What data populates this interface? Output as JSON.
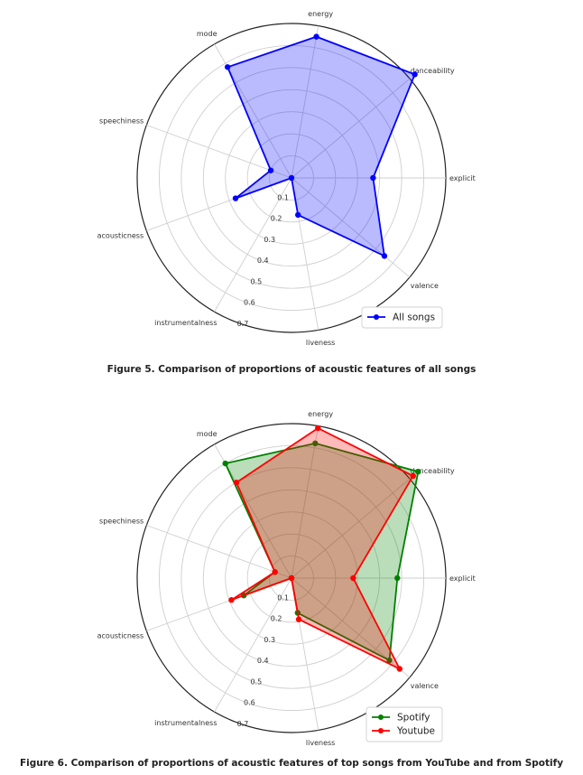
{
  "chart_data": [
    {
      "type": "radar",
      "caption": "Figure 5. Comparison of proportions of acoustic features of all songs",
      "axes": [
        "explicit",
        "danceability",
        "energy",
        "mode",
        "speechiness",
        "acousticness",
        "instrumentalness",
        "liveness",
        "valence"
      ],
      "radial_ticks": [
        "0.1",
        "0.2",
        "0.3",
        "0.4",
        "0.5",
        "0.6",
        "0.7"
      ],
      "rlim": [
        0,
        0.7
      ],
      "grid": true,
      "legend": "lower-right",
      "series": [
        {
          "name": "All songs",
          "color": "#0000ff",
          "fill": "#0000ff",
          "values": [
            0.37,
            0.73,
            0.65,
            0.58,
            0.1,
            0.27,
            0.0,
            0.17,
            0.55
          ]
        }
      ]
    },
    {
      "type": "radar",
      "caption": "Figure 6. Comparison of proportions of acoustic features of top songs from YouTube and from Spotify",
      "axes": [
        "explicit",
        "danceability",
        "energy",
        "mode",
        "speechiness",
        "acousticness",
        "instrumentalness",
        "liveness",
        "valence"
      ],
      "radial_ticks": [
        "0.1",
        "0.2",
        "0.3",
        "0.4",
        "0.5",
        "0.6",
        "0.7"
      ],
      "rlim": [
        0,
        0.7
      ],
      "grid": true,
      "legend": "lower-right",
      "series": [
        {
          "name": "Spotify",
          "color": "#008000",
          "fill": "#008000",
          "values": [
            0.48,
            0.75,
            0.62,
            0.6,
            0.08,
            0.23,
            0.0,
            0.16,
            0.58
          ]
        },
        {
          "name": "Youtube",
          "color": "#ff0000",
          "fill": "#ff0000",
          "values": [
            0.28,
            0.72,
            0.69,
            0.5,
            0.08,
            0.29,
            0.0,
            0.19,
            0.64
          ]
        }
      ]
    }
  ]
}
